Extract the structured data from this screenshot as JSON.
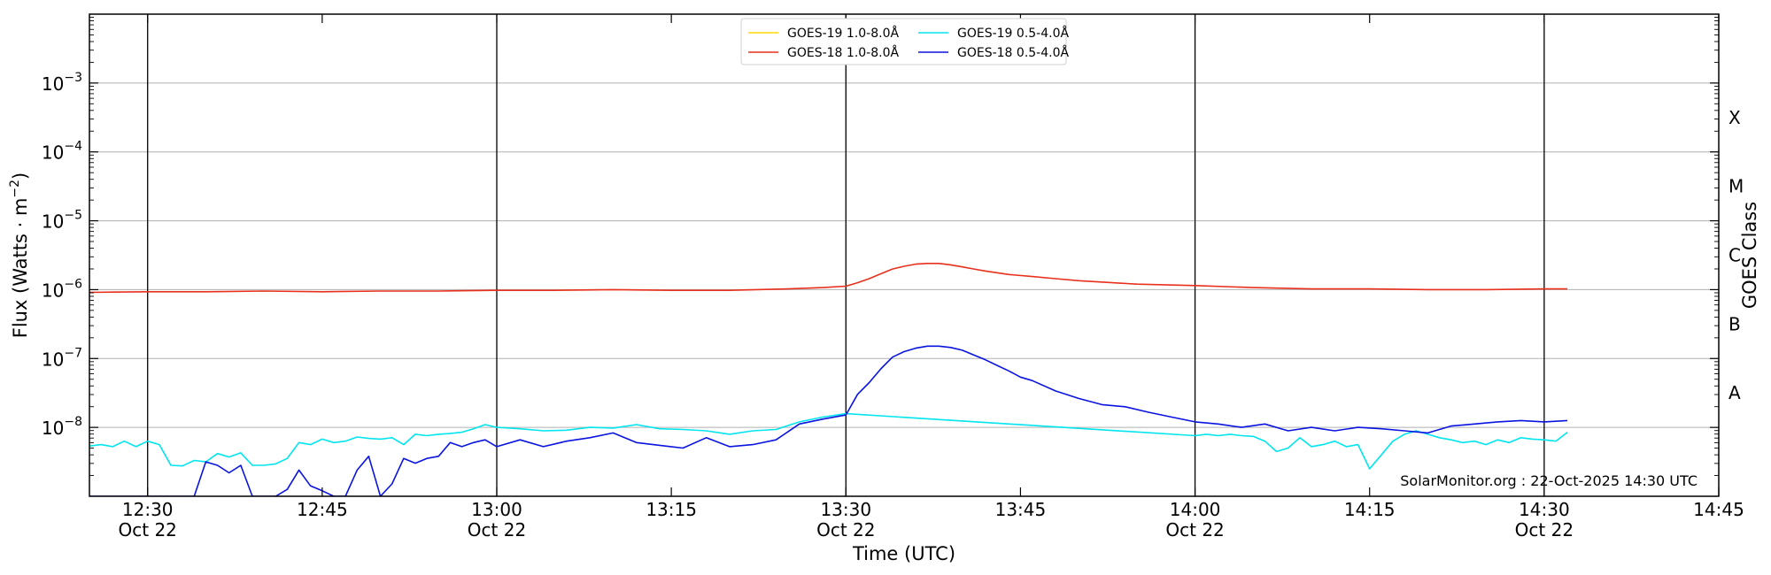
{
  "chart_data": {
    "type": "line",
    "xlabel": "Time (UTC)",
    "ylabel_main": "Flux (Watts · m",
    "ylabel_sup": "−2",
    "ylabel_close": ")",
    "ylabel_right": "GOES Class",
    "footer": "SolarMonitor.org : 22-Oct-2025 14:30 UTC",
    "y_scale": "log",
    "xlim": [
      -5,
      135
    ],
    "ylim_exp": [
      -9,
      -2
    ],
    "grid": "horizontal",
    "legend_position": "top-center",
    "y_ticks": [
      {
        "exp": -3,
        "base": "10",
        "sup": "−3"
      },
      {
        "exp": -4,
        "base": "10",
        "sup": "−4"
      },
      {
        "exp": -5,
        "base": "10",
        "sup": "−5"
      },
      {
        "exp": -6,
        "base": "10",
        "sup": "−6"
      },
      {
        "exp": -7,
        "base": "10",
        "sup": "−7"
      },
      {
        "exp": -8,
        "base": "10",
        "sup": "−8"
      }
    ],
    "goes_classes": [
      {
        "label": "X",
        "exp": -3.5
      },
      {
        "label": "M",
        "exp": -4.5
      },
      {
        "label": "C",
        "exp": -5.5
      },
      {
        "label": "B",
        "exp": -6.5
      },
      {
        "label": "A",
        "exp": -7.5
      }
    ],
    "x_ticks": [
      {
        "t": 0,
        "time": "12:30",
        "date": "Oct 22",
        "vline": true
      },
      {
        "t": 15,
        "time": "12:45",
        "date": "",
        "vline": false
      },
      {
        "t": 30,
        "time": "13:00",
        "date": "Oct 22",
        "vline": true
      },
      {
        "t": 45,
        "time": "13:15",
        "date": "",
        "vline": false
      },
      {
        "t": 60,
        "time": "13:30",
        "date": "Oct 22",
        "vline": true
      },
      {
        "t": 75,
        "time": "13:45",
        "date": "",
        "vline": false
      },
      {
        "t": 90,
        "time": "14:00",
        "date": "Oct 22",
        "vline": true
      },
      {
        "t": 105,
        "time": "14:15",
        "date": "",
        "vline": false
      },
      {
        "t": 120,
        "time": "14:30",
        "date": "Oct 22",
        "vline": true
      },
      {
        "t": 135,
        "time": "14:45",
        "date": "",
        "vline": false
      }
    ],
    "series": [
      {
        "name": "GOES-19 1.0-8.0Å",
        "color": "#ffd700",
        "legend_col": 0,
        "x": [],
        "log_y": []
      },
      {
        "name": "GOES-18 1.0-8.0Å",
        "color": "#e8301c",
        "legend_col": 0,
        "x": [
          -5,
          0,
          5,
          10,
          15,
          20,
          25,
          30,
          35,
          40,
          45,
          50,
          55,
          58,
          60,
          61,
          62,
          63,
          64,
          65,
          66,
          67,
          68,
          69,
          70,
          71,
          72,
          74,
          76,
          78,
          80,
          85,
          90,
          95,
          100,
          105,
          110,
          115,
          120,
          122
        ],
        "log_y": [
          -6.04,
          -6.03,
          -6.03,
          -6.02,
          -6.03,
          -6.02,
          -6.02,
          -6.01,
          -6.01,
          -6.0,
          -6.01,
          -6.01,
          -5.99,
          -5.97,
          -5.95,
          -5.9,
          -5.84,
          -5.77,
          -5.7,
          -5.66,
          -5.63,
          -5.62,
          -5.62,
          -5.64,
          -5.67,
          -5.7,
          -5.73,
          -5.78,
          -5.81,
          -5.84,
          -5.87,
          -5.92,
          -5.94,
          -5.97,
          -5.99,
          -5.99,
          -6.0,
          -6.0,
          -5.99,
          -5.99
        ]
      },
      {
        "name": "GOES-19 0.5-4.0Å",
        "color": "#00e5ee",
        "legend_col": 1,
        "x": [
          -5,
          -4,
          -3,
          -2,
          -1,
          0,
          1,
          2,
          3,
          4,
          5,
          6,
          7,
          8,
          9,
          10,
          11,
          12,
          13,
          14,
          15,
          16,
          17,
          18,
          19,
          20,
          21,
          22,
          23,
          24,
          25,
          26,
          27,
          28,
          29,
          30,
          32,
          34,
          36,
          38,
          40,
          42,
          44,
          46,
          48,
          50,
          52,
          54,
          56,
          58,
          60,
          90,
          91,
          92,
          93,
          94,
          95,
          96,
          97,
          98,
          99,
          100,
          101,
          102,
          103,
          104,
          105,
          106,
          107,
          108,
          109,
          110,
          111,
          112,
          113,
          114,
          115,
          116,
          117,
          118,
          119,
          120,
          121,
          122
        ],
        "log_y": [
          -8.27,
          -8.25,
          -8.28,
          -8.2,
          -8.28,
          -8.2,
          -8.25,
          -8.55,
          -8.56,
          -8.48,
          -8.5,
          -8.38,
          -8.43,
          -8.37,
          -8.55,
          -8.55,
          -8.53,
          -8.45,
          -8.22,
          -8.25,
          -8.17,
          -8.22,
          -8.2,
          -8.14,
          -8.16,
          -8.17,
          -8.15,
          -8.25,
          -8.1,
          -8.12,
          -8.1,
          -8.09,
          -8.07,
          -8.02,
          -7.96,
          -8.0,
          -8.02,
          -8.05,
          -8.04,
          -8.0,
          -8.01,
          -7.96,
          -8.02,
          -8.03,
          -8.05,
          -8.1,
          -8.05,
          -8.03,
          -7.92,
          -7.85,
          -7.8,
          -8.12,
          -8.1,
          -8.12,
          -8.1,
          -8.12,
          -8.13,
          -8.2,
          -8.35,
          -8.3,
          -8.15,
          -8.28,
          -8.25,
          -8.2,
          -8.28,
          -8.25,
          -8.6,
          -8.4,
          -8.2,
          -8.1,
          -8.05,
          -8.1,
          -8.15,
          -8.18,
          -8.22,
          -8.2,
          -8.25,
          -8.18,
          -8.22,
          -8.15,
          -8.17,
          -8.18,
          -8.2,
          -8.07
        ]
      },
      {
        "name": "GOES-18 0.5-4.0Å",
        "color": "#0a14e0",
        "legend_col": 1,
        "x": [
          -5,
          0,
          4,
          5,
          6,
          7,
          8,
          9,
          10,
          11,
          12,
          13,
          14,
          15,
          16,
          17,
          18,
          19,
          20,
          21,
          22,
          23,
          24,
          25,
          26,
          27,
          28,
          29,
          30,
          32,
          34,
          36,
          38,
          40,
          42,
          44,
          46,
          48,
          50,
          52,
          54,
          56,
          58,
          60,
          61,
          62,
          63,
          64,
          65,
          66,
          67,
          68,
          69,
          70,
          71,
          72,
          73,
          74,
          75,
          76,
          78,
          80,
          82,
          84,
          86,
          88,
          90,
          92,
          94,
          96,
          98,
          100,
          102,
          104,
          106,
          108,
          110,
          112,
          114,
          116,
          118,
          120,
          122
        ],
        "log_y": [
          -9.0,
          -9.0,
          -9.0,
          -8.5,
          -8.55,
          -8.66,
          -8.55,
          -9.0,
          -9.0,
          -9.0,
          -8.9,
          -8.62,
          -8.85,
          -8.92,
          -9.0,
          -9.0,
          -8.62,
          -8.42,
          -9.0,
          -8.82,
          -8.45,
          -8.52,
          -8.45,
          -8.42,
          -8.22,
          -8.28,
          -8.22,
          -8.18,
          -8.28,
          -8.18,
          -8.28,
          -8.2,
          -8.15,
          -8.08,
          -8.22,
          -8.26,
          -8.3,
          -8.15,
          -8.28,
          -8.25,
          -8.18,
          -7.95,
          -7.88,
          -7.82,
          -7.52,
          -7.35,
          -7.15,
          -6.98,
          -6.9,
          -6.85,
          -6.82,
          -6.82,
          -6.84,
          -6.88,
          -6.95,
          -7.02,
          -7.1,
          -7.18,
          -7.27,
          -7.32,
          -7.47,
          -7.58,
          -7.67,
          -7.7,
          -7.78,
          -7.85,
          -7.92,
          -7.95,
          -8.0,
          -7.95,
          -8.05,
          -8.0,
          -8.05,
          -8.0,
          -8.02,
          -8.05,
          -8.08,
          -7.98,
          -7.95,
          -7.92,
          -7.9,
          -7.92,
          -7.9
        ]
      }
    ]
  }
}
